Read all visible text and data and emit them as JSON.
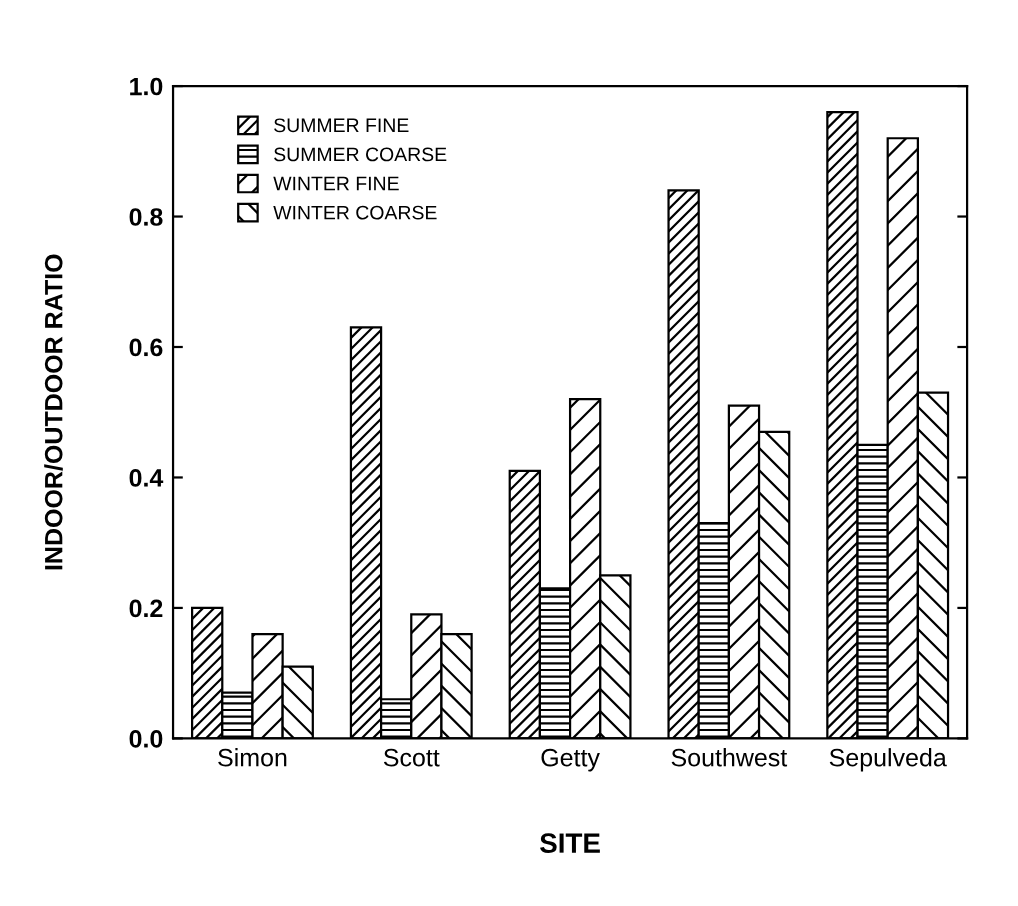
{
  "chart_data": {
    "type": "bar",
    "xlabel": "SITE",
    "ylabel": "INDOOR/OUTDOOR RATIO",
    "categories": [
      "Simon",
      "Scott",
      "Getty",
      "Southwest",
      "Sepulveda"
    ],
    "series": [
      {
        "name": "SUMMER FINE",
        "color": "#000000",
        "values": [
          0.2,
          0.63,
          0.41,
          0.84,
          0.96
        ]
      },
      {
        "name": "SUMMER COARSE",
        "color": "#000000",
        "values": [
          0.07,
          0.06,
          0.23,
          0.33,
          0.45
        ]
      },
      {
        "name": "WINTER FINE",
        "color": "#000000",
        "values": [
          0.16,
          0.19,
          0.52,
          0.51,
          0.92
        ]
      },
      {
        "name": "WINTER COARSE",
        "color": "#000000",
        "values": [
          0.11,
          0.16,
          0.25,
          0.47,
          0.53
        ]
      }
    ],
    "ylim": [
      0,
      1.0
    ],
    "yticks": [
      {
        "value": 0,
        "label": "0.0"
      },
      0.2,
      0.4,
      0.6,
      0.8,
      {
        "value": 1.0,
        "label": "1.0"
      }
    ],
    "legend": "top left",
    "grid": false
  }
}
